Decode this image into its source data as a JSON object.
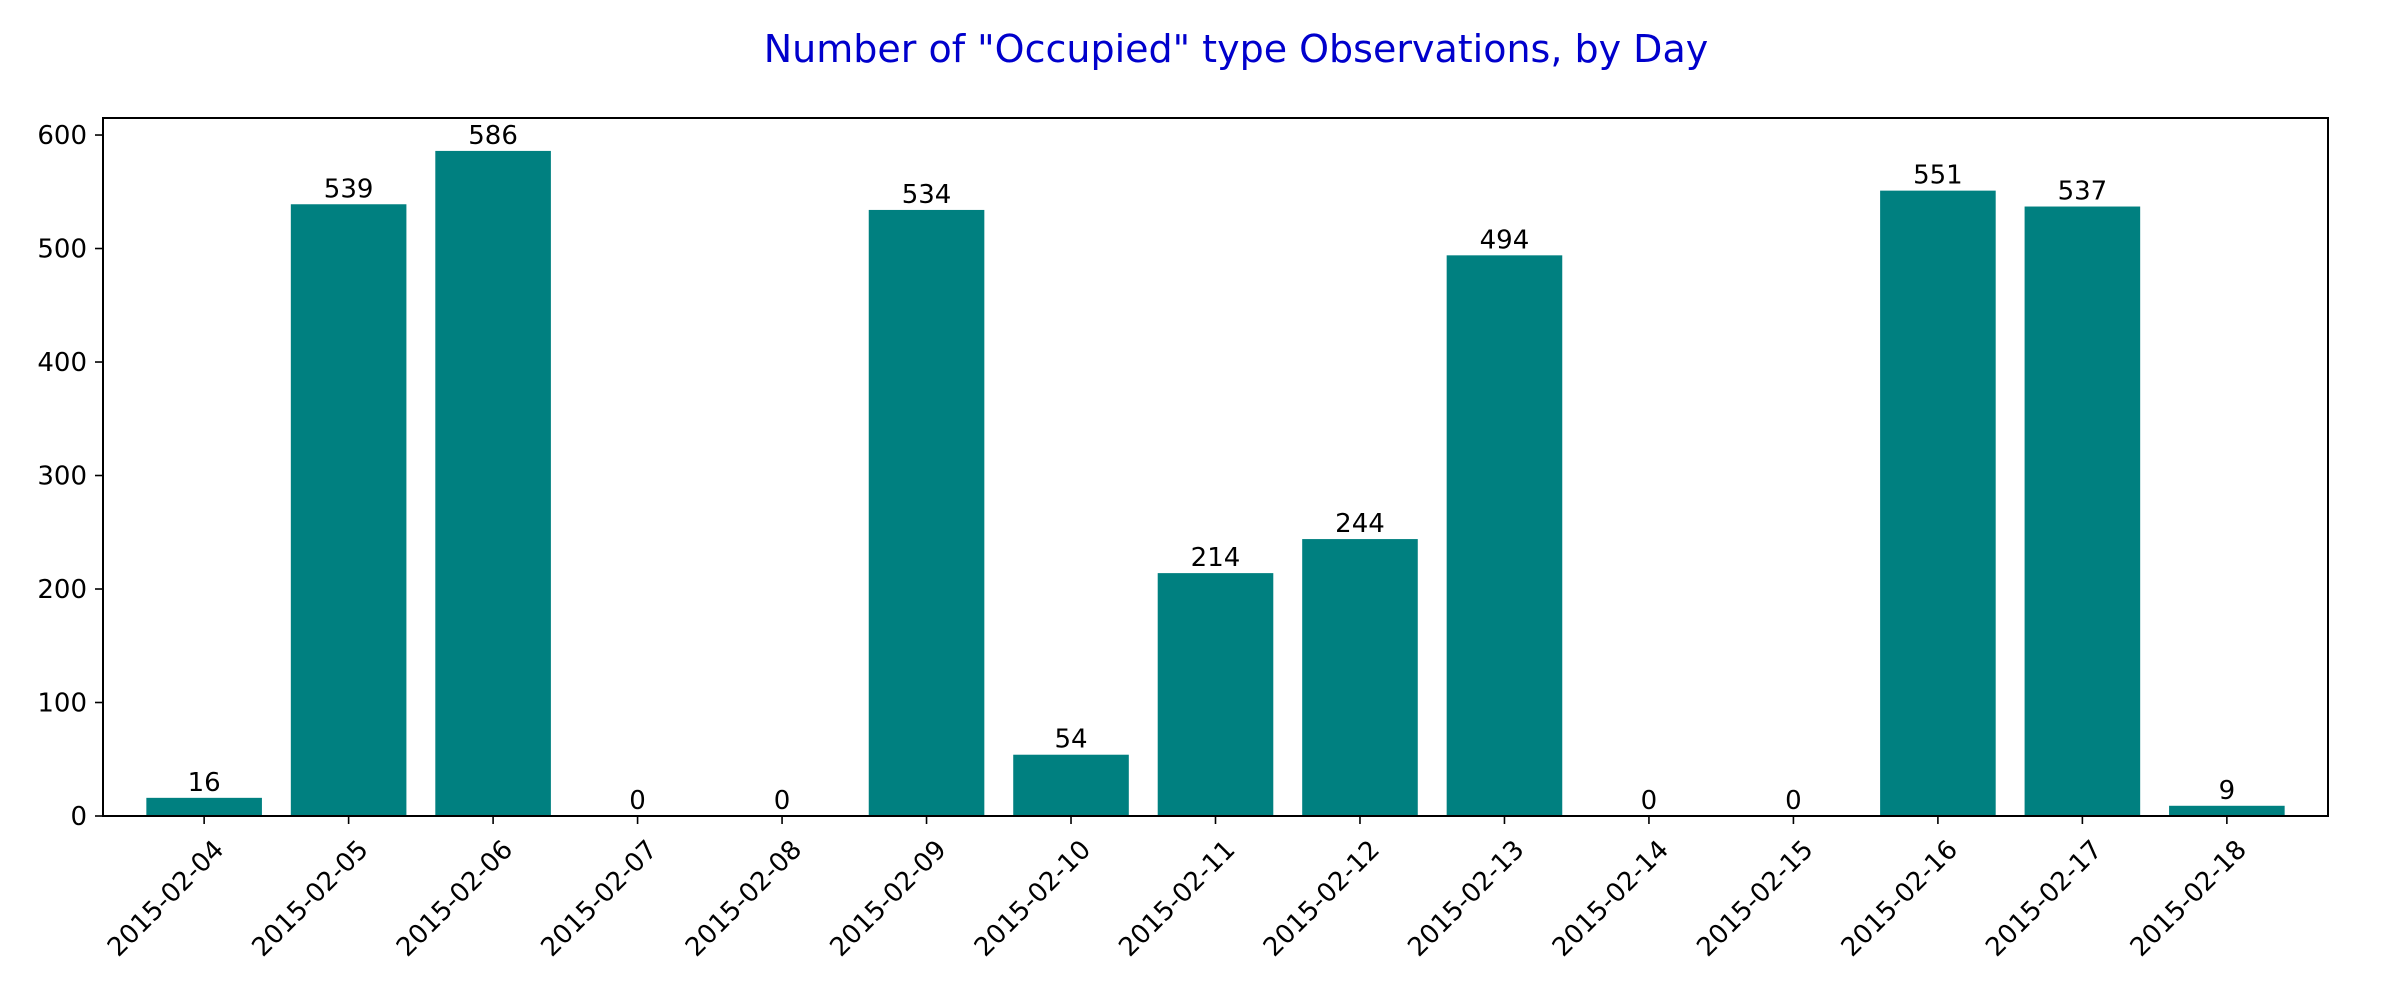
{
  "chart_data": {
    "type": "bar",
    "title": "Number of \"Occupied\" type Observations, by Day",
    "xlabel": "",
    "ylabel": "",
    "categories": [
      "2015-02-04",
      "2015-02-05",
      "2015-02-06",
      "2015-02-07",
      "2015-02-08",
      "2015-02-09",
      "2015-02-10",
      "2015-02-11",
      "2015-02-12",
      "2015-02-13",
      "2015-02-14",
      "2015-02-15",
      "2015-02-16",
      "2015-02-17",
      "2015-02-18"
    ],
    "values": [
      16,
      539,
      586,
      0,
      0,
      534,
      54,
      214,
      244,
      494,
      0,
      0,
      551,
      537,
      9
    ],
    "ylim": [
      0,
      615
    ],
    "yticks": [
      0,
      100,
      200,
      300,
      400,
      500,
      600
    ],
    "grid": false,
    "legend": "none",
    "bar_color": "#008080",
    "title_color": "#0000cc",
    "x_tick_rotation": 45
  }
}
